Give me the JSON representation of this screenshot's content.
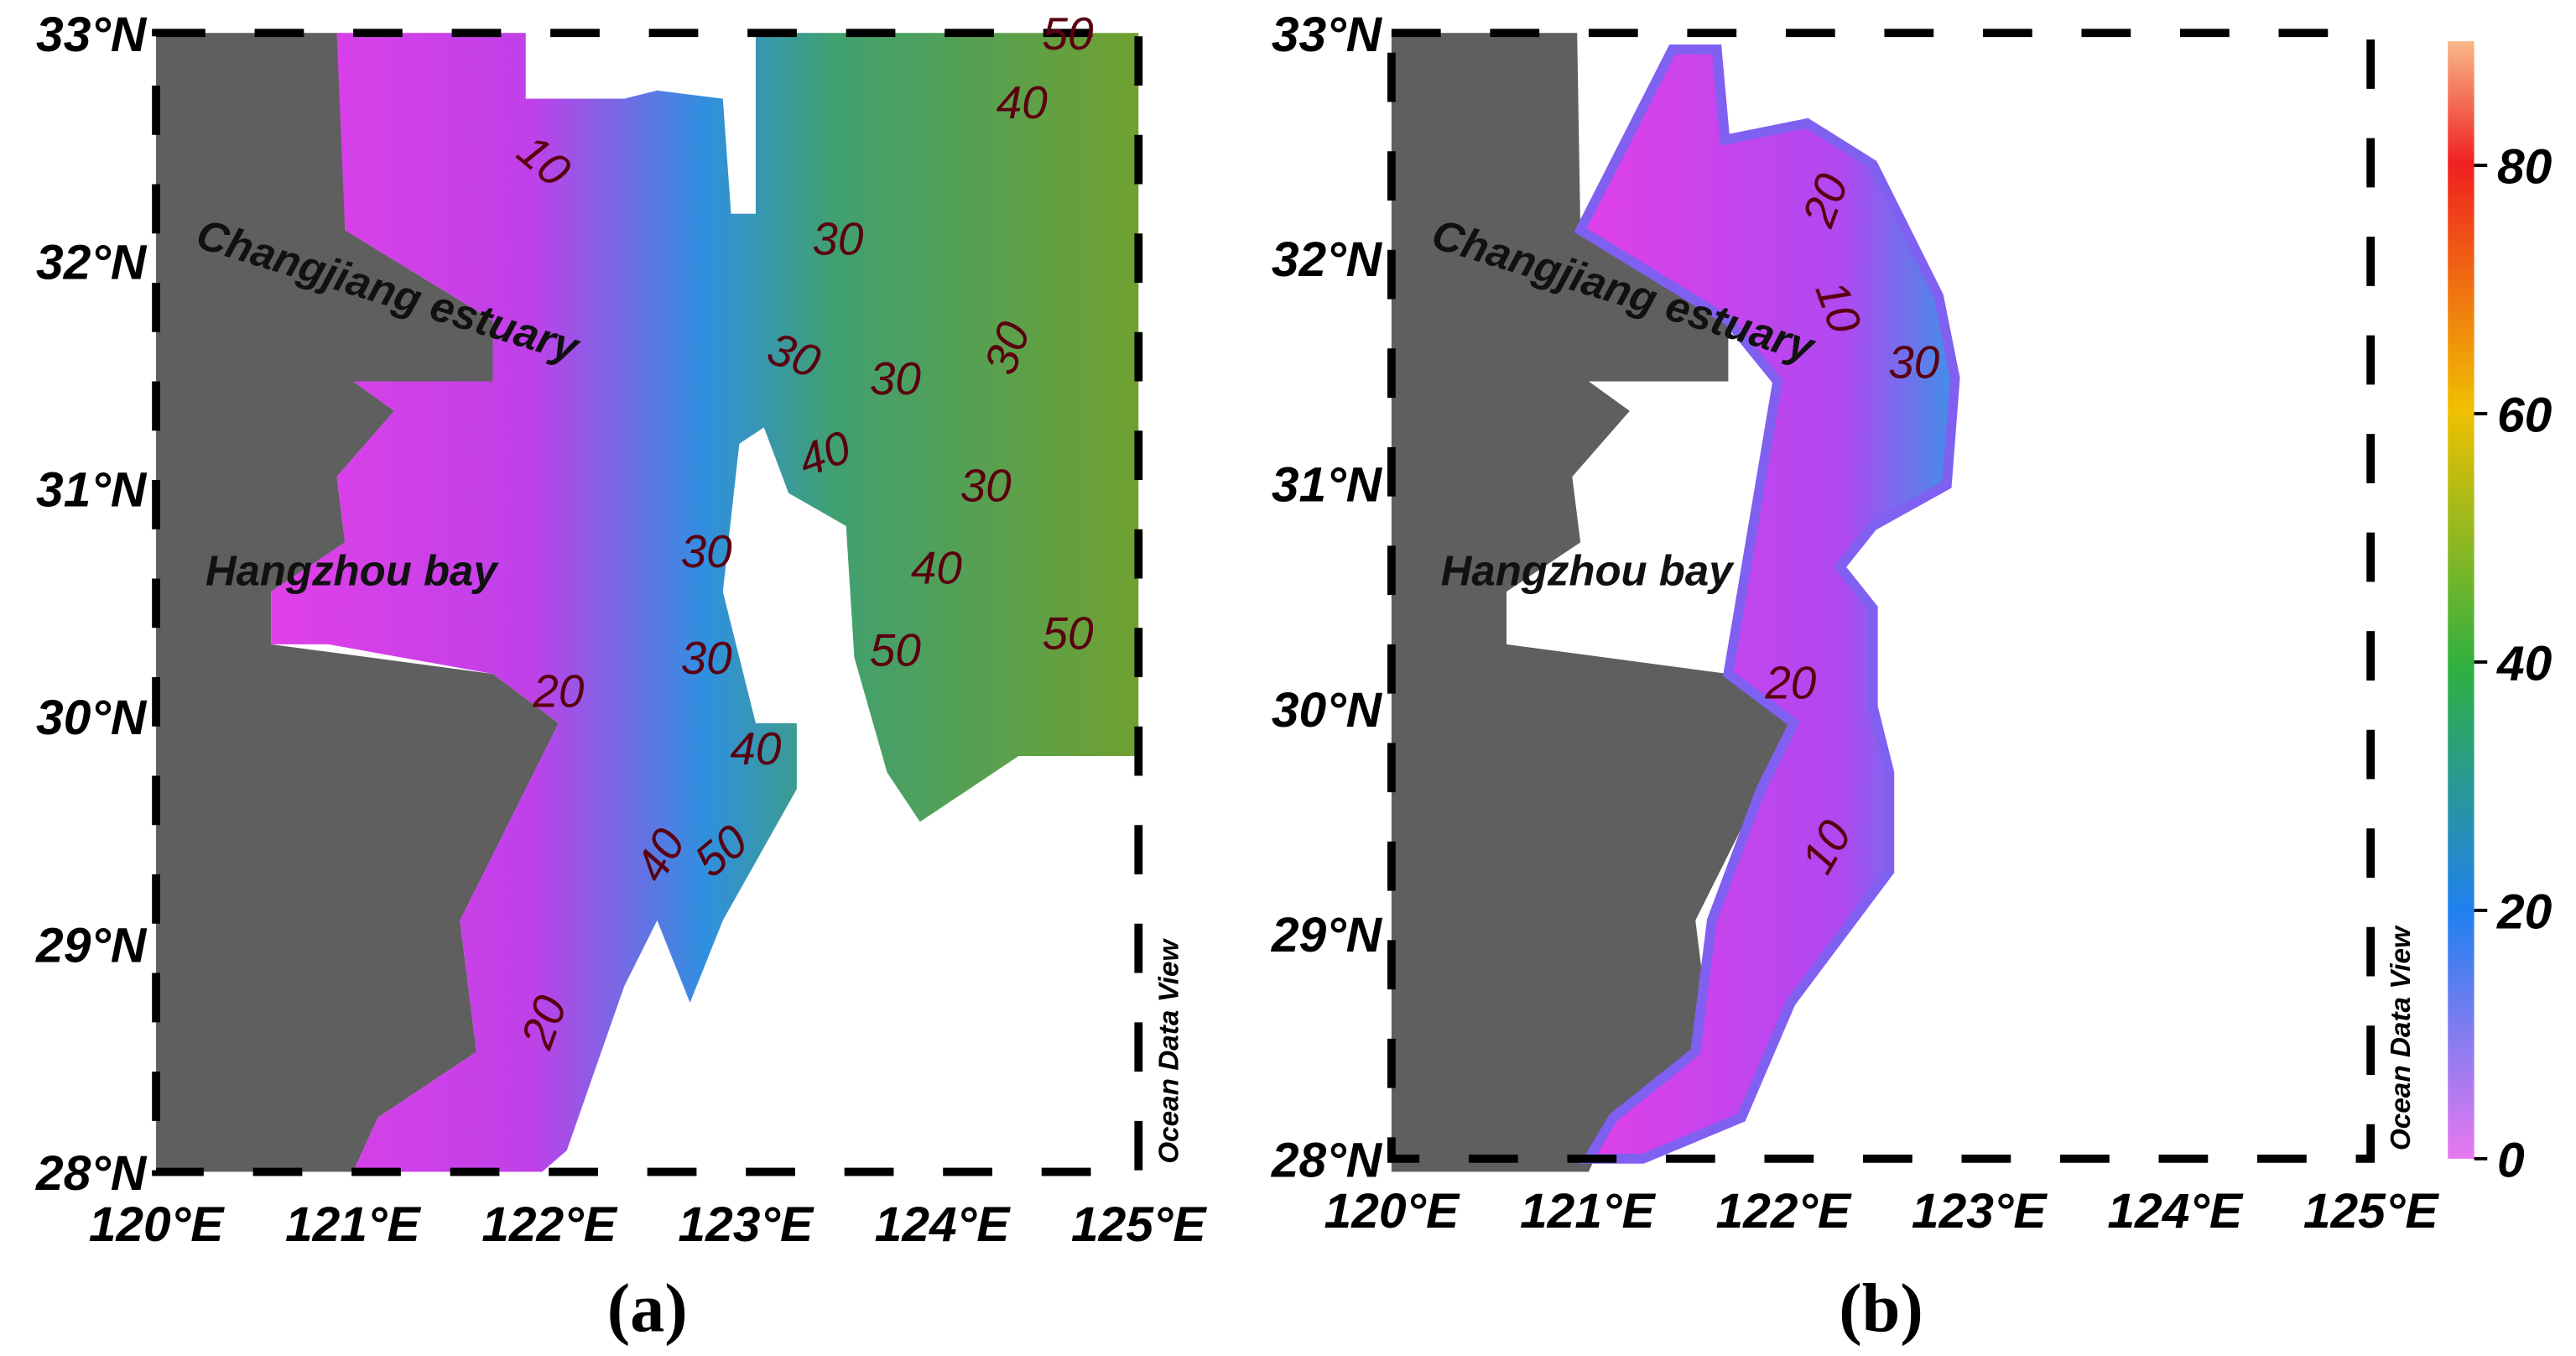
{
  "maps": {
    "xlim": [
      120,
      125
    ],
    "ylim": [
      28,
      33
    ],
    "lat_ticks": [
      {
        "value": 33,
        "label": "33°N"
      },
      {
        "value": 32,
        "label": "32°N"
      },
      {
        "value": 31,
        "label": "31°N"
      },
      {
        "value": 30,
        "label": "30°N"
      },
      {
        "value": 29,
        "label": "29°N"
      },
      {
        "value": 28,
        "label": "28°N"
      }
    ],
    "lon_ticks": [
      {
        "value": 120,
        "label": "120°E"
      },
      {
        "value": 121,
        "label": "121°E"
      },
      {
        "value": 122,
        "label": "122°E"
      },
      {
        "value": 123,
        "label": "123°E"
      },
      {
        "value": 124,
        "label": "124°E"
      },
      {
        "value": 125,
        "label": "125°E"
      }
    ],
    "panels": [
      {
        "label": "(a)",
        "place_labels": [
          "Changjiang estuary",
          "Hangzhou bay"
        ],
        "watermark": "Ocean Data View",
        "contour_labels": [
          "10",
          "30",
          "30",
          "30",
          "30",
          "40",
          "30",
          "30",
          "40",
          "50",
          "50",
          "30",
          "20",
          "40",
          "50",
          "40",
          "20",
          "50",
          "40"
        ]
      },
      {
        "label": "(b)",
        "place_labels": [
          "Changjiang estuary",
          "Hangzhou bay"
        ],
        "watermark": "Ocean Data View",
        "contour_labels": [
          "20",
          "10",
          "30",
          "20",
          "10"
        ]
      }
    ],
    "colorbar": {
      "lim": [
        0,
        90
      ],
      "ticks": [
        0,
        20,
        40,
        60,
        80
      ]
    }
  }
}
